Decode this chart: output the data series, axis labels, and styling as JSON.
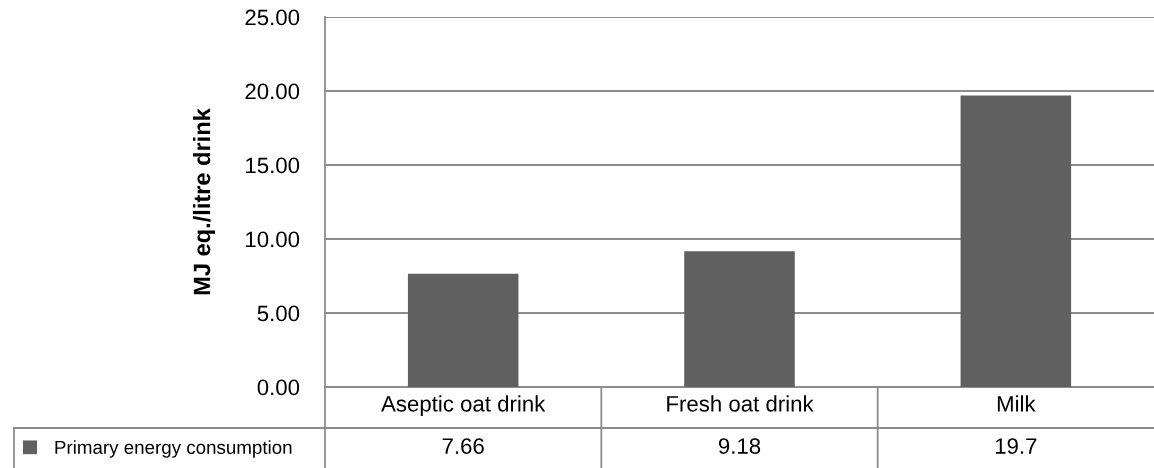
{
  "chart_data": {
    "type": "bar",
    "ylabel": "MJ eq./litre drink",
    "categories": [
      "Aseptic oat drink",
      "Fresh oat drink",
      "Milk"
    ],
    "series": [
      {
        "name": "Primary energy consumption",
        "color": "#606060",
        "values": [
          7.66,
          9.18,
          19.7
        ]
      }
    ],
    "ylim": [
      0,
      25
    ],
    "yticks": [
      {
        "value": 0,
        "label": "0.00"
      },
      {
        "value": 5,
        "label": "5.00"
      },
      {
        "value": 10,
        "label": "10.00"
      },
      {
        "value": 15,
        "label": "15.00"
      },
      {
        "value": 20,
        "label": "20.00"
      },
      {
        "value": 25,
        "label": "25.00"
      }
    ],
    "grid": "y",
    "legend": "bottom left",
    "data_labels": true
  }
}
